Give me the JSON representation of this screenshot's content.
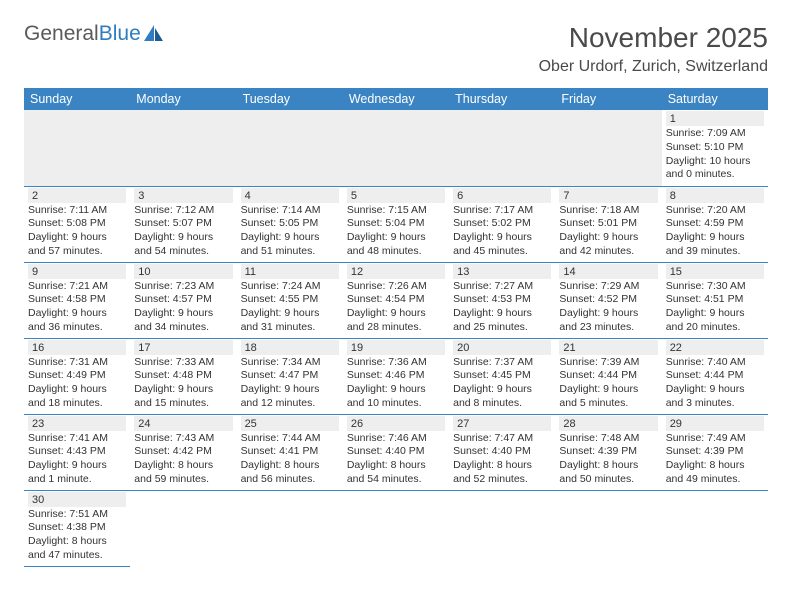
{
  "logo": {
    "text1": "General",
    "text2": "Blue"
  },
  "title": "November 2025",
  "location": "Ober Urdorf, Zurich, Switzerland",
  "colors": {
    "header_bg": "#3a84c4",
    "header_text": "#ffffff",
    "row_sep": "#3a84c4",
    "daynum_bg": "#eeeeee",
    "body_text": "#333333",
    "title_text": "#4a4a4a",
    "logo_gray": "#5a5a5a",
    "logo_blue": "#2f7dc0",
    "page_bg": "#ffffff"
  },
  "typography": {
    "month_title_pt": 28,
    "location_pt": 16,
    "header_pt": 12.5,
    "cell_pt": 10.5,
    "daynum_pt": 11,
    "logo_pt": 21
  },
  "weekdays": [
    "Sunday",
    "Monday",
    "Tuesday",
    "Wednesday",
    "Thursday",
    "Friday",
    "Saturday"
  ],
  "leading_blanks": 6,
  "days": [
    {
      "n": 1,
      "sunrise": "7:09 AM",
      "sunset": "5:10 PM",
      "daylight": "10 hours and 0 minutes."
    },
    {
      "n": 2,
      "sunrise": "7:11 AM",
      "sunset": "5:08 PM",
      "daylight": "9 hours and 57 minutes."
    },
    {
      "n": 3,
      "sunrise": "7:12 AM",
      "sunset": "5:07 PM",
      "daylight": "9 hours and 54 minutes."
    },
    {
      "n": 4,
      "sunrise": "7:14 AM",
      "sunset": "5:05 PM",
      "daylight": "9 hours and 51 minutes."
    },
    {
      "n": 5,
      "sunrise": "7:15 AM",
      "sunset": "5:04 PM",
      "daylight": "9 hours and 48 minutes."
    },
    {
      "n": 6,
      "sunrise": "7:17 AM",
      "sunset": "5:02 PM",
      "daylight": "9 hours and 45 minutes."
    },
    {
      "n": 7,
      "sunrise": "7:18 AM",
      "sunset": "5:01 PM",
      "daylight": "9 hours and 42 minutes."
    },
    {
      "n": 8,
      "sunrise": "7:20 AM",
      "sunset": "4:59 PM",
      "daylight": "9 hours and 39 minutes."
    },
    {
      "n": 9,
      "sunrise": "7:21 AM",
      "sunset": "4:58 PM",
      "daylight": "9 hours and 36 minutes."
    },
    {
      "n": 10,
      "sunrise": "7:23 AM",
      "sunset": "4:57 PM",
      "daylight": "9 hours and 34 minutes."
    },
    {
      "n": 11,
      "sunrise": "7:24 AM",
      "sunset": "4:55 PM",
      "daylight": "9 hours and 31 minutes."
    },
    {
      "n": 12,
      "sunrise": "7:26 AM",
      "sunset": "4:54 PM",
      "daylight": "9 hours and 28 minutes."
    },
    {
      "n": 13,
      "sunrise": "7:27 AM",
      "sunset": "4:53 PM",
      "daylight": "9 hours and 25 minutes."
    },
    {
      "n": 14,
      "sunrise": "7:29 AM",
      "sunset": "4:52 PM",
      "daylight": "9 hours and 23 minutes."
    },
    {
      "n": 15,
      "sunrise": "7:30 AM",
      "sunset": "4:51 PM",
      "daylight": "9 hours and 20 minutes."
    },
    {
      "n": 16,
      "sunrise": "7:31 AM",
      "sunset": "4:49 PM",
      "daylight": "9 hours and 18 minutes."
    },
    {
      "n": 17,
      "sunrise": "7:33 AM",
      "sunset": "4:48 PM",
      "daylight": "9 hours and 15 minutes."
    },
    {
      "n": 18,
      "sunrise": "7:34 AM",
      "sunset": "4:47 PM",
      "daylight": "9 hours and 12 minutes."
    },
    {
      "n": 19,
      "sunrise": "7:36 AM",
      "sunset": "4:46 PM",
      "daylight": "9 hours and 10 minutes."
    },
    {
      "n": 20,
      "sunrise": "7:37 AM",
      "sunset": "4:45 PM",
      "daylight": "9 hours and 8 minutes."
    },
    {
      "n": 21,
      "sunrise": "7:39 AM",
      "sunset": "4:44 PM",
      "daylight": "9 hours and 5 minutes."
    },
    {
      "n": 22,
      "sunrise": "7:40 AM",
      "sunset": "4:44 PM",
      "daylight": "9 hours and 3 minutes."
    },
    {
      "n": 23,
      "sunrise": "7:41 AM",
      "sunset": "4:43 PM",
      "daylight": "9 hours and 1 minute."
    },
    {
      "n": 24,
      "sunrise": "7:43 AM",
      "sunset": "4:42 PM",
      "daylight": "8 hours and 59 minutes."
    },
    {
      "n": 25,
      "sunrise": "7:44 AM",
      "sunset": "4:41 PM",
      "daylight": "8 hours and 56 minutes."
    },
    {
      "n": 26,
      "sunrise": "7:46 AM",
      "sunset": "4:40 PM",
      "daylight": "8 hours and 54 minutes."
    },
    {
      "n": 27,
      "sunrise": "7:47 AM",
      "sunset": "4:40 PM",
      "daylight": "8 hours and 52 minutes."
    },
    {
      "n": 28,
      "sunrise": "7:48 AM",
      "sunset": "4:39 PM",
      "daylight": "8 hours and 50 minutes."
    },
    {
      "n": 29,
      "sunrise": "7:49 AM",
      "sunset": "4:39 PM",
      "daylight": "8 hours and 49 minutes."
    },
    {
      "n": 30,
      "sunrise": "7:51 AM",
      "sunset": "4:38 PM",
      "daylight": "8 hours and 47 minutes."
    }
  ],
  "labels": {
    "sunrise": "Sunrise:",
    "sunset": "Sunset:",
    "daylight": "Daylight:"
  }
}
